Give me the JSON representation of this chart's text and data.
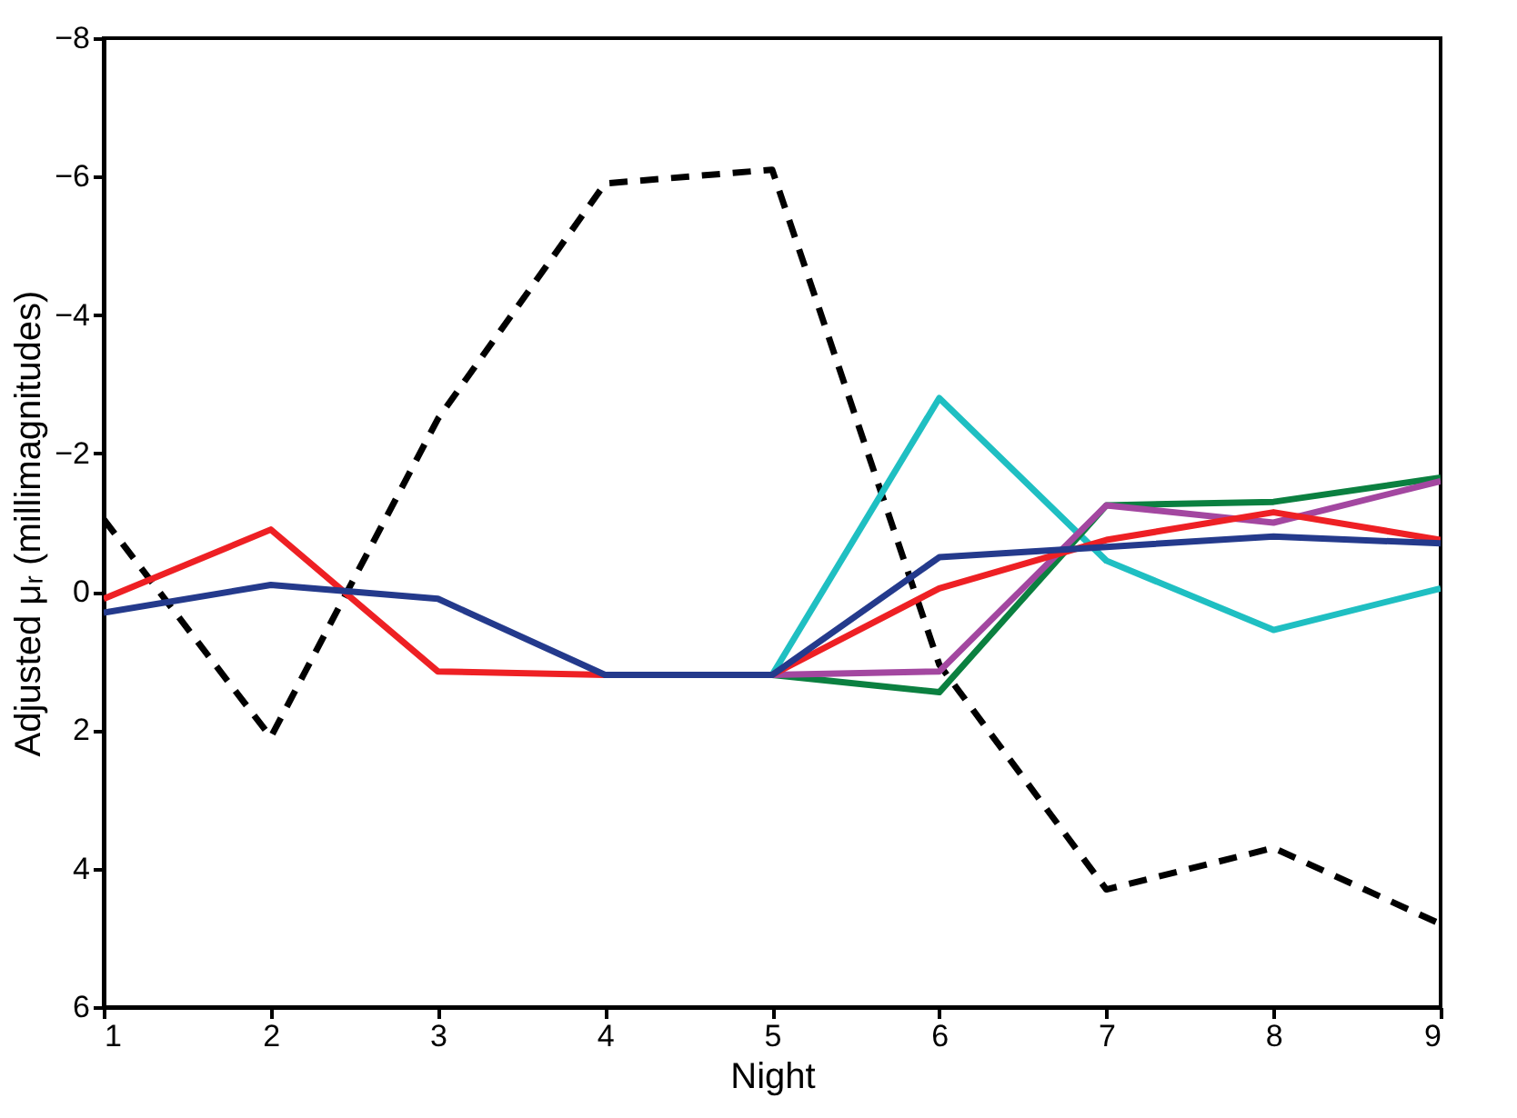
{
  "chart_data": {
    "type": "line",
    "xlabel": "Night",
    "ylabel": "Adjusted μᵣ  (millimagnitudes)",
    "x": [
      1,
      2,
      3,
      4,
      5,
      6,
      7,
      8,
      9
    ],
    "xlim": [
      1,
      9
    ],
    "xticks": [
      1,
      2,
      3,
      4,
      5,
      6,
      7,
      8,
      9
    ],
    "ylim": [
      6,
      -8
    ],
    "yticks": [
      6,
      4,
      2,
      0,
      -2,
      -4,
      -6,
      -8
    ],
    "grid": false,
    "legend": false,
    "marker": "none",
    "series": [
      {
        "color": "#000000",
        "line_style": "dashed",
        "values": [
          -1.05,
          2.1,
          -2.5,
          -5.9,
          -6.1,
          1.05,
          4.3,
          3.7,
          4.8
        ]
      },
      {
        "color": "#1fbfc2",
        "line_style": "solid",
        "values": [
          null,
          null,
          null,
          null,
          1.2,
          -2.8,
          -0.45,
          0.55,
          -0.05
        ]
      },
      {
        "color": "#0b8040",
        "line_style": "solid",
        "values": [
          null,
          null,
          null,
          null,
          1.2,
          1.45,
          -1.25,
          -1.3,
          -1.65
        ]
      },
      {
        "color": "#a347a0",
        "line_style": "solid",
        "values": [
          null,
          null,
          null,
          null,
          1.2,
          1.15,
          -1.25,
          -1.0,
          -1.6
        ]
      },
      {
        "color": "#ee2024",
        "line_style": "solid",
        "values": [
          0.1,
          -0.9,
          1.15,
          1.2,
          1.2,
          -0.05,
          -0.75,
          -1.15,
          -0.75
        ]
      },
      {
        "color": "#243a8c",
        "line_style": "solid",
        "values": [
          0.3,
          -0.1,
          0.1,
          1.2,
          1.2,
          -0.5,
          -0.65,
          -0.8,
          -0.7
        ]
      }
    ]
  }
}
